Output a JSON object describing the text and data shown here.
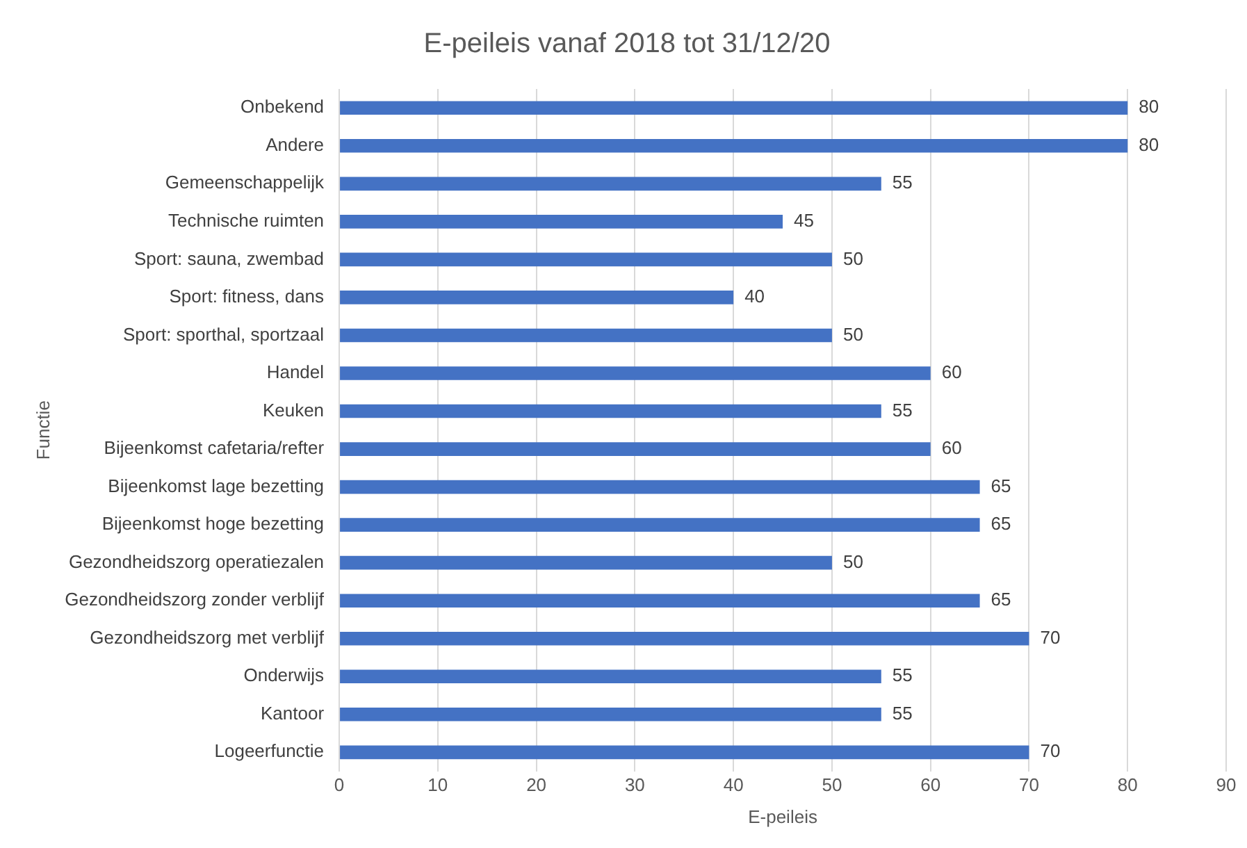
{
  "chart_data": {
    "type": "bar",
    "orientation": "horizontal",
    "title": "E-peileis vanaf 2018 tot 31/12/20",
    "xlabel": "E-peileis",
    "ylabel": "Functie",
    "categories": [
      "Onbekend",
      "Andere",
      "Gemeenschappelijk",
      "Technische ruimten",
      "Sport: sauna, zwembad",
      "Sport: fitness, dans",
      "Sport: sporthal, sportzaal",
      "Handel",
      "Keuken",
      "Bijeenkomst cafetaria/refter",
      "Bijeenkomst lage bezetting",
      "Bijeenkomst hoge bezetting",
      "Gezondheidszorg operatiezalen",
      "Gezondheidszorg zonder verblijf",
      "Gezondheidszorg met verblijf",
      "Onderwijs",
      "Kantoor",
      "Logeerfunctie"
    ],
    "values": [
      80,
      80,
      55,
      45,
      50,
      40,
      50,
      60,
      55,
      60,
      65,
      65,
      50,
      65,
      70,
      55,
      55,
      70
    ],
    "color": "#4472c4",
    "xlim": [
      0,
      90
    ],
    "xticks": [
      0,
      10,
      20,
      30,
      40,
      50,
      60,
      70,
      80,
      90
    ],
    "grid": "x",
    "data_labels": true,
    "legend": false
  }
}
